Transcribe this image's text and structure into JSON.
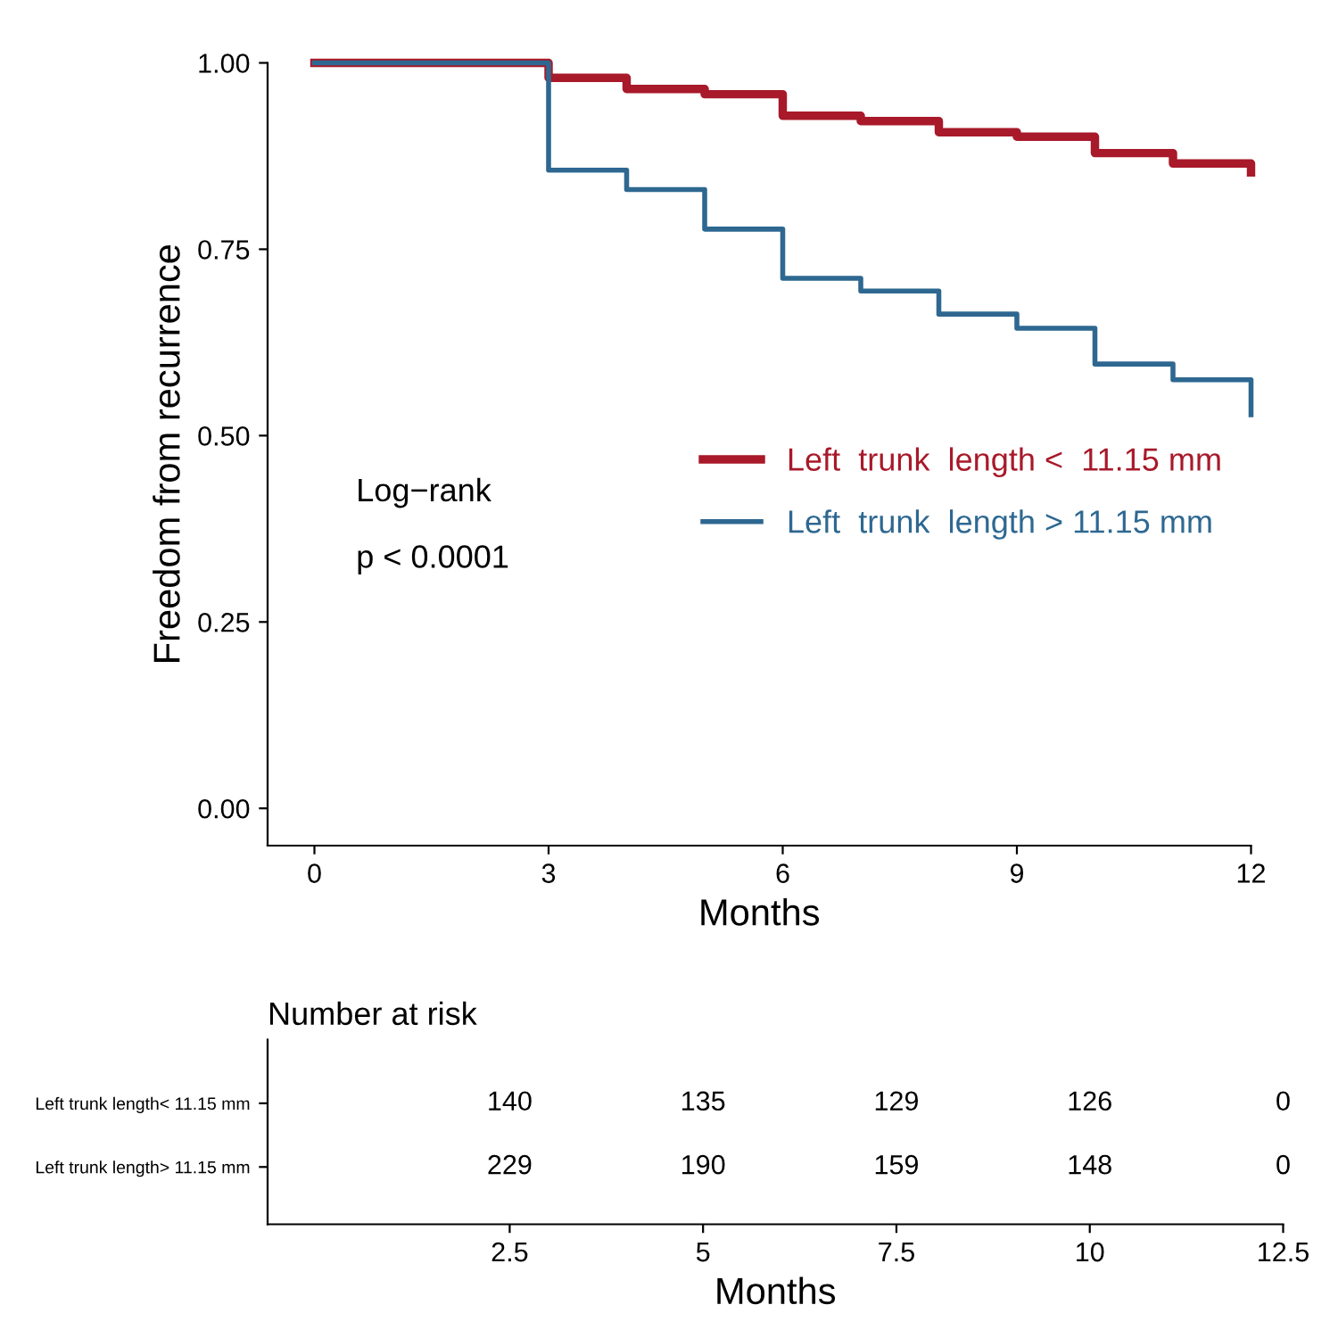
{
  "chart_data": [
    {
      "type": "step",
      "xlabel": "Months",
      "ylabel": "Freedom from recurrence",
      "x": [
        0,
        3,
        4,
        5,
        6,
        7,
        8,
        9,
        10,
        11,
        12
      ],
      "series": [
        {
          "name": "Left  trunk  length <  11.15 mm",
          "color": "#a8192a",
          "values": [
            1.0,
            0.98,
            0.965,
            0.958,
            0.929,
            0.922,
            0.907,
            0.901,
            0.879,
            0.865,
            0.853
          ]
        },
        {
          "name": "Left  trunk  length > 11.15 mm",
          "color": "#2e6891",
          "values": [
            1.0,
            0.856,
            0.83,
            0.777,
            0.711,
            0.694,
            0.663,
            0.644,
            0.596,
            0.575,
            0.528
          ]
        }
      ],
      "xlim": [
        -0.6,
        12
      ],
      "xticks": [
        0,
        3,
        6,
        9,
        12
      ],
      "ylim": [
        -0.05,
        1.0
      ],
      "yticks": [
        {
          "value": 0,
          "label": "0.00"
        },
        {
          "value": 0.25,
          "label": "0.25"
        },
        {
          "value": 0.5,
          "label": "0.50"
        },
        {
          "value": 0.75,
          "label": "0.75"
        },
        {
          "value": 1.0,
          "label": "1.00"
        }
      ],
      "annotations": [
        "Log−rank",
        "p < 0.0001"
      ],
      "legend": "right",
      "grid": false,
      "line_style": "solid"
    },
    {
      "type": "heatmap",
      "title": "Number at risk",
      "xlabel": "Months",
      "x": [
        2.5,
        5,
        7.5,
        10,
        12.5
      ],
      "y_categories": [
        "Left trunk length< 11.15 mm",
        "Left trunk length> 11.15 mm"
      ],
      "cells": [
        [
          140,
          135,
          129,
          126,
          0
        ],
        [
          229,
          190,
          159,
          148,
          0
        ]
      ],
      "xlim": [
        -0.63,
        12.5
      ],
      "xticks": [
        2.5,
        5,
        7.5,
        10,
        12.5
      ],
      "data_labels": true
    }
  ]
}
